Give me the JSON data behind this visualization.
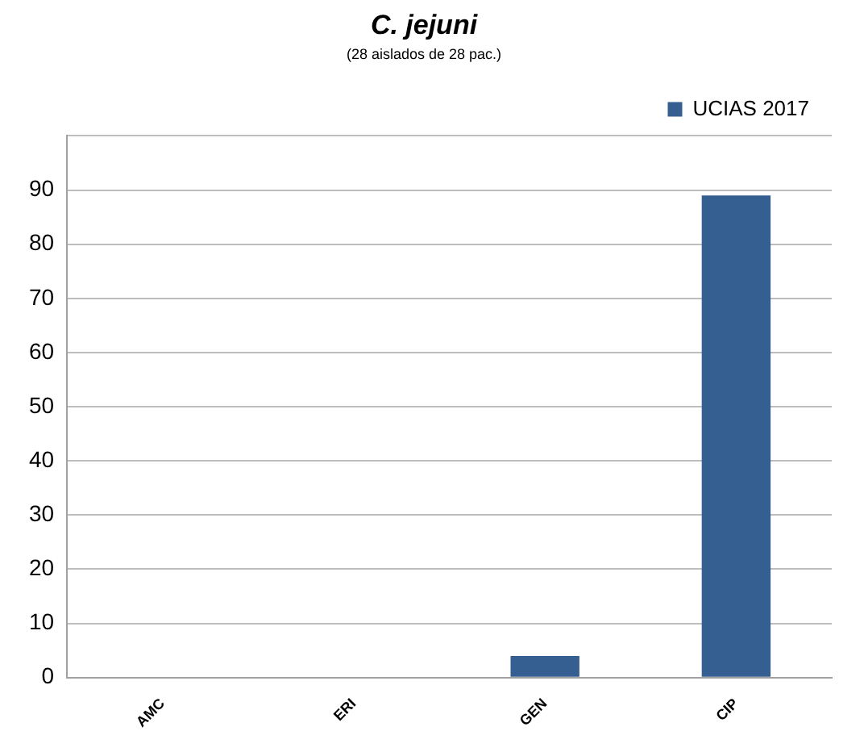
{
  "chart_data": {
    "type": "bar",
    "title": "C. jejuni",
    "subtitle": "(28 aislados de 28 pac.)",
    "categories": [
      "AMC",
      "ERI",
      "GEN",
      "CIP"
    ],
    "series": [
      {
        "name": "UCIAS 2017",
        "color": "#365f91",
        "values": [
          0,
          0,
          4,
          89
        ]
      }
    ],
    "ylim": [
      0,
      100
    ],
    "yticks": [
      0,
      10,
      20,
      30,
      40,
      50,
      60,
      70,
      80,
      90,
      {
        "value": 100,
        "label": null
      }
    ],
    "grid": "y",
    "legend": "top right"
  }
}
